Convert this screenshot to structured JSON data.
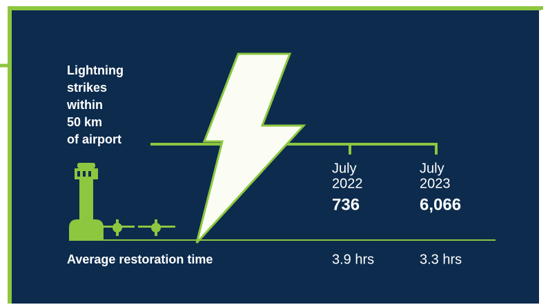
{
  "heading": {
    "lines": [
      "Lightning",
      "strikes",
      "within",
      "50 km",
      "of airport"
    ]
  },
  "columns": [
    {
      "period": [
        "July",
        "2022"
      ],
      "strikes": "736",
      "restoration": "3.9 hrs"
    },
    {
      "period": [
        "July",
        "2023"
      ],
      "strikes": "6,066",
      "restoration": "3.3 hrs"
    }
  ],
  "restoration_label": "Average restoration time"
}
